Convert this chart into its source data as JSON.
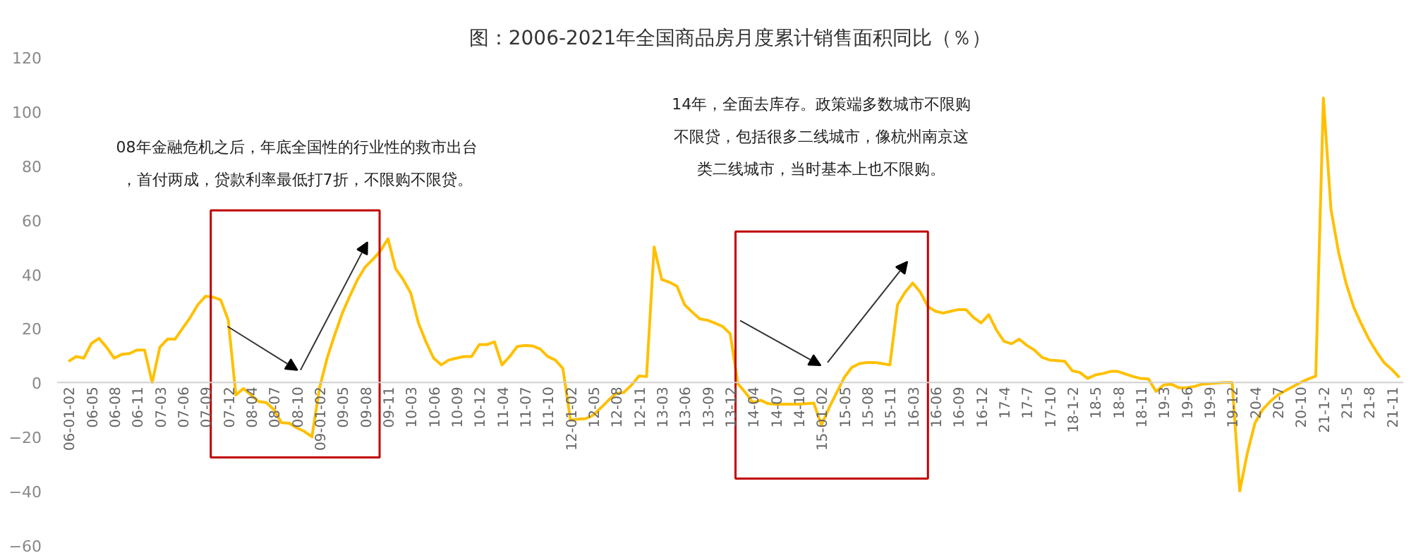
{
  "chart_data": {
    "type": "line",
    "title": "图：2006-2021年全国商品房月度累计销售面积同比（％）",
    "categories": [
      "06-01-02",
      null,
      null,
      "06-05",
      null,
      null,
      "06-08",
      null,
      null,
      "06-11",
      null,
      null,
      "07-03",
      null,
      null,
      "07-06",
      null,
      null,
      "07-09",
      null,
      null,
      "07-12",
      null,
      null,
      "08-04",
      null,
      null,
      "08-07",
      null,
      null,
      "08-10",
      null,
      null,
      "09-01-02",
      null,
      null,
      "09-05",
      null,
      null,
      "09-08",
      null,
      null,
      "09-11",
      null,
      null,
      "10-03",
      null,
      null,
      "10-06",
      null,
      null,
      "10-09",
      null,
      null,
      "10-12",
      null,
      null,
      "11-04",
      null,
      null,
      "11-07",
      null,
      null,
      "11-10",
      null,
      null,
      "12-01-02",
      null,
      null,
      "12-05",
      null,
      null,
      "12-08",
      null,
      null,
      "12-11",
      null,
      null,
      "13-03",
      null,
      null,
      "13-06",
      null,
      null,
      "13-09",
      null,
      null,
      "13-12",
      null,
      null,
      "14-04",
      null,
      null,
      "14-07",
      null,
      null,
      "14-10",
      null,
      null,
      "15-01-02",
      null,
      null,
      "15-05",
      null,
      null,
      "15-08",
      null,
      null,
      "15-11",
      null,
      null,
      "16-03",
      null,
      null,
      "16-06",
      null,
      null,
      "16-09",
      null,
      null,
      "16-12",
      null,
      null,
      "17-4",
      null,
      null,
      "17-7",
      null,
      null,
      "17-10",
      null,
      null,
      "18-1-2",
      null,
      null,
      "18-5",
      null,
      null,
      "18-8",
      null,
      null,
      "18-11",
      null,
      null,
      "19-3",
      null,
      null,
      "19-6",
      null,
      null,
      "19-9",
      null,
      null,
      "19-12",
      null,
      null,
      "20-4",
      null,
      null,
      "20-7",
      null,
      null,
      "20-10",
      null,
      null,
      "21-1-2",
      null,
      null,
      "21-5",
      null,
      null,
      "21-8",
      null,
      null,
      "21-11",
      null
    ],
    "series": [
      {
        "color": "#ffc000",
        "values": [
          7.8,
          9.6,
          9,
          14.4,
          16.3,
          13,
          9,
          10.4,
          10.7,
          12,
          12,
          0,
          13,
          16,
          16,
          20,
          24,
          28.7,
          31.8,
          31.5,
          30.5,
          23,
          -4.6,
          -2.2,
          -4.6,
          -7,
          -7.4,
          -10,
          -14.8,
          -15,
          -16.7,
          -18,
          -20,
          -2,
          9,
          17.6,
          25.6,
          32,
          38,
          42.6,
          45.4,
          48.5,
          53,
          42,
          38,
          33,
          22,
          15,
          9,
          6.5,
          8.3,
          9,
          9.6,
          9.6,
          14,
          14,
          15,
          6.5,
          9.6,
          13.3,
          13.7,
          13.5,
          12.4,
          9.6,
          8.3,
          5.2,
          -13.9,
          -13.5,
          -13.3,
          -12,
          -9.3,
          -6.5,
          -4,
          -3.7,
          -1,
          2.4,
          2.2,
          50,
          38,
          37,
          35.5,
          28.7,
          26,
          23.5,
          23,
          21.9,
          20.7,
          18,
          -0.4,
          -3.7,
          -7.4,
          -6.5,
          -7.8,
          -8,
          -8,
          -8,
          -8,
          -7.8,
          -7.6,
          -15.7,
          -9.3,
          -3.7,
          1.9,
          5.6,
          7,
          7.4,
          7.4,
          7,
          6.5,
          28.7,
          33.3,
          36.7,
          33.3,
          28,
          26.3,
          25.6,
          26.3,
          26.9,
          26.9,
          24,
          22,
          25,
          19.4,
          15.2,
          14.3,
          16,
          13.7,
          12,
          9.3,
          8.3,
          8.1,
          7.8,
          4.3,
          3.7,
          1.5,
          2.8,
          3.3,
          4.1,
          4.1,
          3.1,
          2.2,
          1.5,
          1.3,
          -3.3,
          -0.9,
          -0.6,
          -1.9,
          -1.9,
          -1.5,
          -0.6,
          -0.4,
          -0.2,
          0,
          0,
          -40,
          -26,
          -15,
          -10,
          -7,
          -4.6,
          -3,
          -1.5,
          0,
          1.3,
          2.4,
          104.9,
          63.8,
          48,
          36.4,
          27.7,
          21.5,
          15.9,
          11.3,
          7.3,
          4.8,
          1.9
        ]
      }
    ],
    "ylim": [
      -60,
      120
    ],
    "yticks": [
      -60,
      -40,
      -20,
      0,
      20,
      40,
      60,
      80,
      100,
      120
    ],
    "grid": false,
    "marker": "none",
    "line_style": "solid",
    "annotations": [
      "08年金融危机之后，年底全国性的行业性的救市出台",
      "，首付两成，贷款利率最低打7折，不限购不限贷。",
      "14年，全面去库存。政策端多数城市不限购",
      "不限贷，包括很多二线城市，像杭州南京这",
      "类二线城市，当时基本上也不限购。"
    ]
  }
}
